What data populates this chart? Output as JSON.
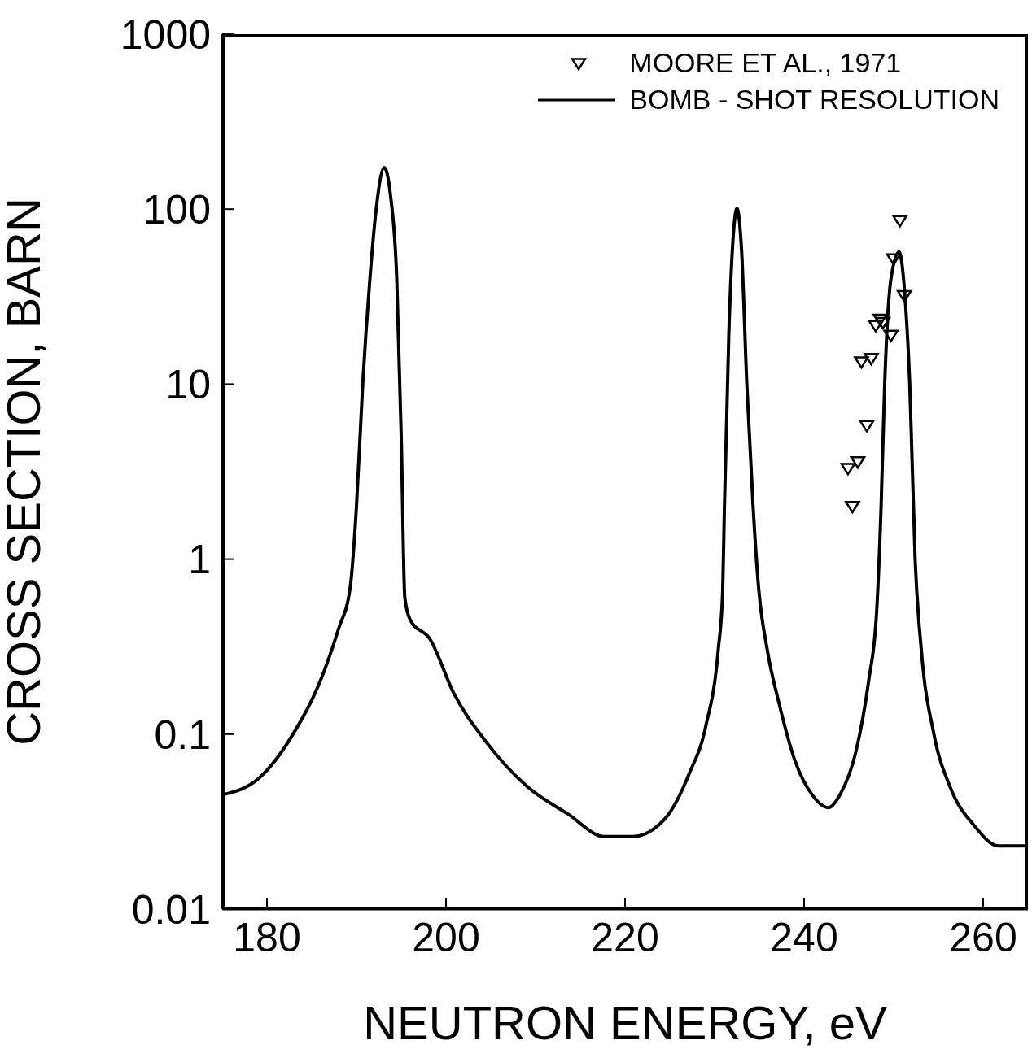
{
  "chart_data": {
    "type": "line",
    "xlabel": "NEUTRON ENERGY, eV",
    "ylabel": "CROSS  SECTION, BARN",
    "log": "y",
    "xlim": [
      175,
      265
    ],
    "xticks": [
      180,
      200,
      220,
      240,
      260
    ],
    "ylim": [
      0.01,
      1000
    ],
    "yticks": [
      0.01,
      0.1,
      1,
      10,
      100,
      1000
    ],
    "grid": false,
    "legend": "top right",
    "series": [
      {
        "name": "MOORE ET AL., 1971",
        "type": "scatter",
        "marker": "triangle",
        "color": "#000000",
        "x": [
          250.7,
          250.0,
          251.2,
          248.5,
          248.0,
          248.8,
          249.7,
          246.4,
          247.5,
          247.0,
          246.0,
          244.9,
          245.4
        ],
        "values": [
          86,
          52,
          32,
          23.5,
          21.6,
          22.5,
          19,
          13.4,
          14,
          5.8,
          3.6,
          3.3,
          2.0
        ]
      },
      {
        "name": "BOMB - SHOT  RESOLUTION",
        "marker": "none",
        "line_style": "solid",
        "color": "#000000",
        "x": [
          175,
          179.1,
          182.7,
          186.4,
          188,
          189.3,
          190,
          190.7,
          191.5,
          192.2,
          193.1,
          193.8,
          194.5,
          195,
          195.4,
          196,
          198.2,
          200.9,
          204.5,
          209.1,
          213.6,
          217.7,
          220.9,
          224.5,
          227.2,
          229,
          230.4,
          230.9,
          231.1,
          231.6,
          232,
          232.5,
          233,
          233.6,
          234.3,
          234.9,
          235.9,
          237.2,
          239,
          240.9,
          242.7,
          244,
          245.8,
          247.2,
          248.1,
          248.6,
          249,
          249.7,
          250.6,
          251.3,
          251.8,
          252.4,
          253.1,
          254.5,
          256.3,
          259,
          261.7,
          265
        ],
        "values": [
          0.045,
          0.056,
          0.096,
          0.23,
          0.4,
          0.69,
          2,
          10,
          40,
          100,
          173,
          120,
          40,
          5,
          0.6,
          0.45,
          0.35,
          0.17,
          0.09,
          0.05,
          0.035,
          0.026,
          0.026,
          0.033,
          0.06,
          0.11,
          0.3,
          0.65,
          2,
          20,
          60,
          101,
          60,
          10,
          2,
          0.7,
          0.3,
          0.15,
          0.07,
          0.045,
          0.038,
          0.045,
          0.08,
          0.2,
          0.5,
          2,
          10,
          40,
          57,
          30,
          10,
          1,
          0.3,
          0.1,
          0.05,
          0.03,
          0.023,
          0.023
        ]
      }
    ]
  }
}
